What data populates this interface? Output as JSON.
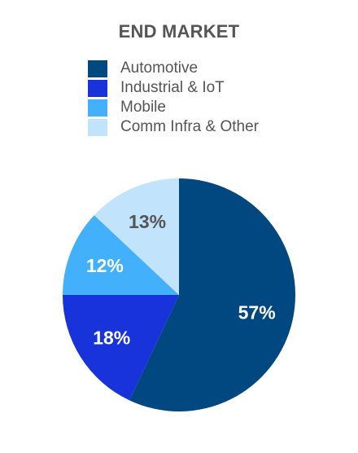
{
  "chart_data": {
    "type": "pie",
    "title": "END MARKET",
    "legend_position": "top",
    "slices": [
      {
        "label": "Automotive",
        "value": 57,
        "display": "57%",
        "color": "#014780",
        "label_color": "#ffffff"
      },
      {
        "label": "Industrial & IoT",
        "value": 18,
        "display": "18%",
        "color": "#1733d9",
        "label_color": "#ffffff"
      },
      {
        "label": "Mobile",
        "value": 12,
        "display": "12%",
        "color": "#42b0fa",
        "label_color": "#ffffff"
      },
      {
        "label": "Comm Infra & Other",
        "value": 13,
        "display": "13%",
        "color": "#c2e3fc",
        "label_color": "#555555"
      }
    ]
  }
}
